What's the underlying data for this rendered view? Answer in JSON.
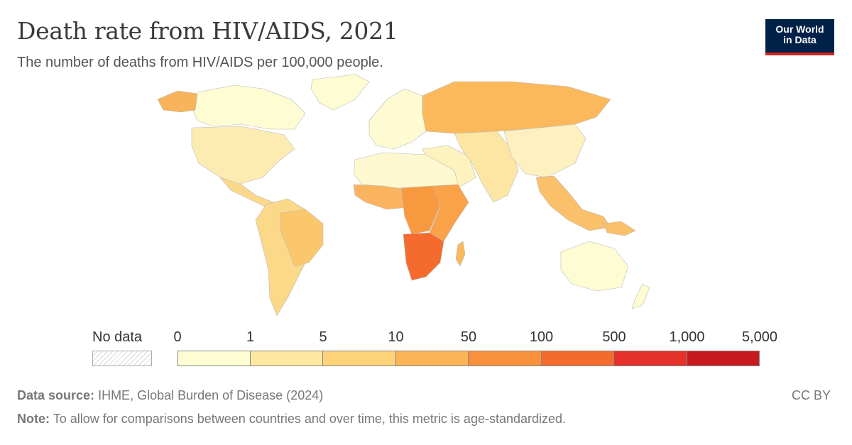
{
  "title": "Death rate from HIV/AIDS, 2021",
  "subtitle": "The number of deaths from HIV/AIDS per 100,000 people.",
  "logo": {
    "line1": "Our World",
    "line2": "in Data"
  },
  "legend": {
    "no_data_label": "No data",
    "ticks": [
      "0",
      "1",
      "5",
      "10",
      "50",
      "100",
      "500",
      "1,000",
      "5,000"
    ],
    "bin_colors": [
      "#fefcd2",
      "#fde8a0",
      "#fdd279",
      "#fcb556",
      "#f9913c",
      "#f56b2d",
      "#e4312b",
      "#c71a20",
      "#a3001f"
    ]
  },
  "regions": [
    {
      "name": "North America",
      "color": "#fdecb2"
    },
    {
      "name": "Canada",
      "color": "#fefcd2"
    },
    {
      "name": "Greenland",
      "color": "#fefcd2"
    },
    {
      "name": "Alaska",
      "color": "#f9b35a"
    },
    {
      "name": "Central America and Caribbean",
      "color": "#fbd88a"
    },
    {
      "name": "South America",
      "color": "#fcd989"
    },
    {
      "name": "Brazil",
      "color": "#fbc76c"
    },
    {
      "name": "Europe",
      "color": "#fefad2"
    },
    {
      "name": "Russia",
      "color": "#fbb95c"
    },
    {
      "name": "Middle East",
      "color": "#fef2bf"
    },
    {
      "name": "Central and South Asia",
      "color": "#fde6a4"
    },
    {
      "name": "China",
      "color": "#fef0bf"
    },
    {
      "name": "Southeast Asia",
      "color": "#fbc06a"
    },
    {
      "name": "North Africa",
      "color": "#fef8d0"
    },
    {
      "name": "West Africa",
      "color": "#fbb45d"
    },
    {
      "name": "Central Africa",
      "color": "#f9993f"
    },
    {
      "name": "East Africa",
      "color": "#f9a247"
    },
    {
      "name": "Southern Africa",
      "color": "#f56b2d"
    },
    {
      "name": "Madagascar",
      "color": "#fbb95c"
    },
    {
      "name": "Australia",
      "color": "#fefcd2"
    },
    {
      "name": "New Zealand",
      "color": "#fefcd2"
    },
    {
      "name": "Papua New Guinea",
      "color": "#fbc06a"
    }
  ],
  "source": {
    "label": "Data source:",
    "text": "IHME, Global Burden of Disease (2024)"
  },
  "note": {
    "label": "Note:",
    "text": "To allow for comparisons between countries and over time, this metric is age-standardized."
  },
  "license": "CC BY"
}
